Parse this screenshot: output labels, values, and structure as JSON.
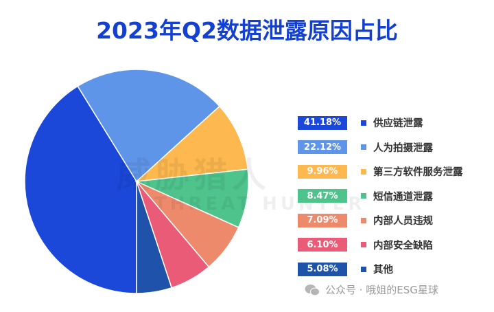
{
  "chart_data": {
    "type": "pie",
    "title": "2023年Q2数据泄露原因占比",
    "start_angle_deg": 180,
    "direction": "clockwise",
    "legend_position": "right",
    "slices": [
      {
        "label": "供应链泄露",
        "value": 41.18,
        "display": "41.18%",
        "color": "#1b48d8"
      },
      {
        "label": "人为拍摄泄露",
        "value": 22.12,
        "display": "22.12%",
        "color": "#5f95e8"
      },
      {
        "label": "第三方软件服务泄露",
        "value": 9.96,
        "display": "9.96%",
        "color": "#fdb84f"
      },
      {
        "label": "短信通道泄露",
        "value": 8.47,
        "display": "8.47%",
        "color": "#4ec48c"
      },
      {
        "label": "内部人员违规",
        "value": 7.09,
        "display": "7.09%",
        "color": "#ee8a6c"
      },
      {
        "label": "内部安全缺陷",
        "value": 6.1,
        "display": "6.10%",
        "color": "#ea5b78"
      },
      {
        "label": "其他",
        "value": 5.08,
        "display": "5.08%",
        "color": "#1f53a9"
      }
    ]
  },
  "watermark": {
    "cn": "威胁猎人",
    "en": "THREAT HUNTER"
  },
  "footer": {
    "text": "公众号 · 哦姐的ESG星球",
    "icon": "wechat-icon"
  }
}
